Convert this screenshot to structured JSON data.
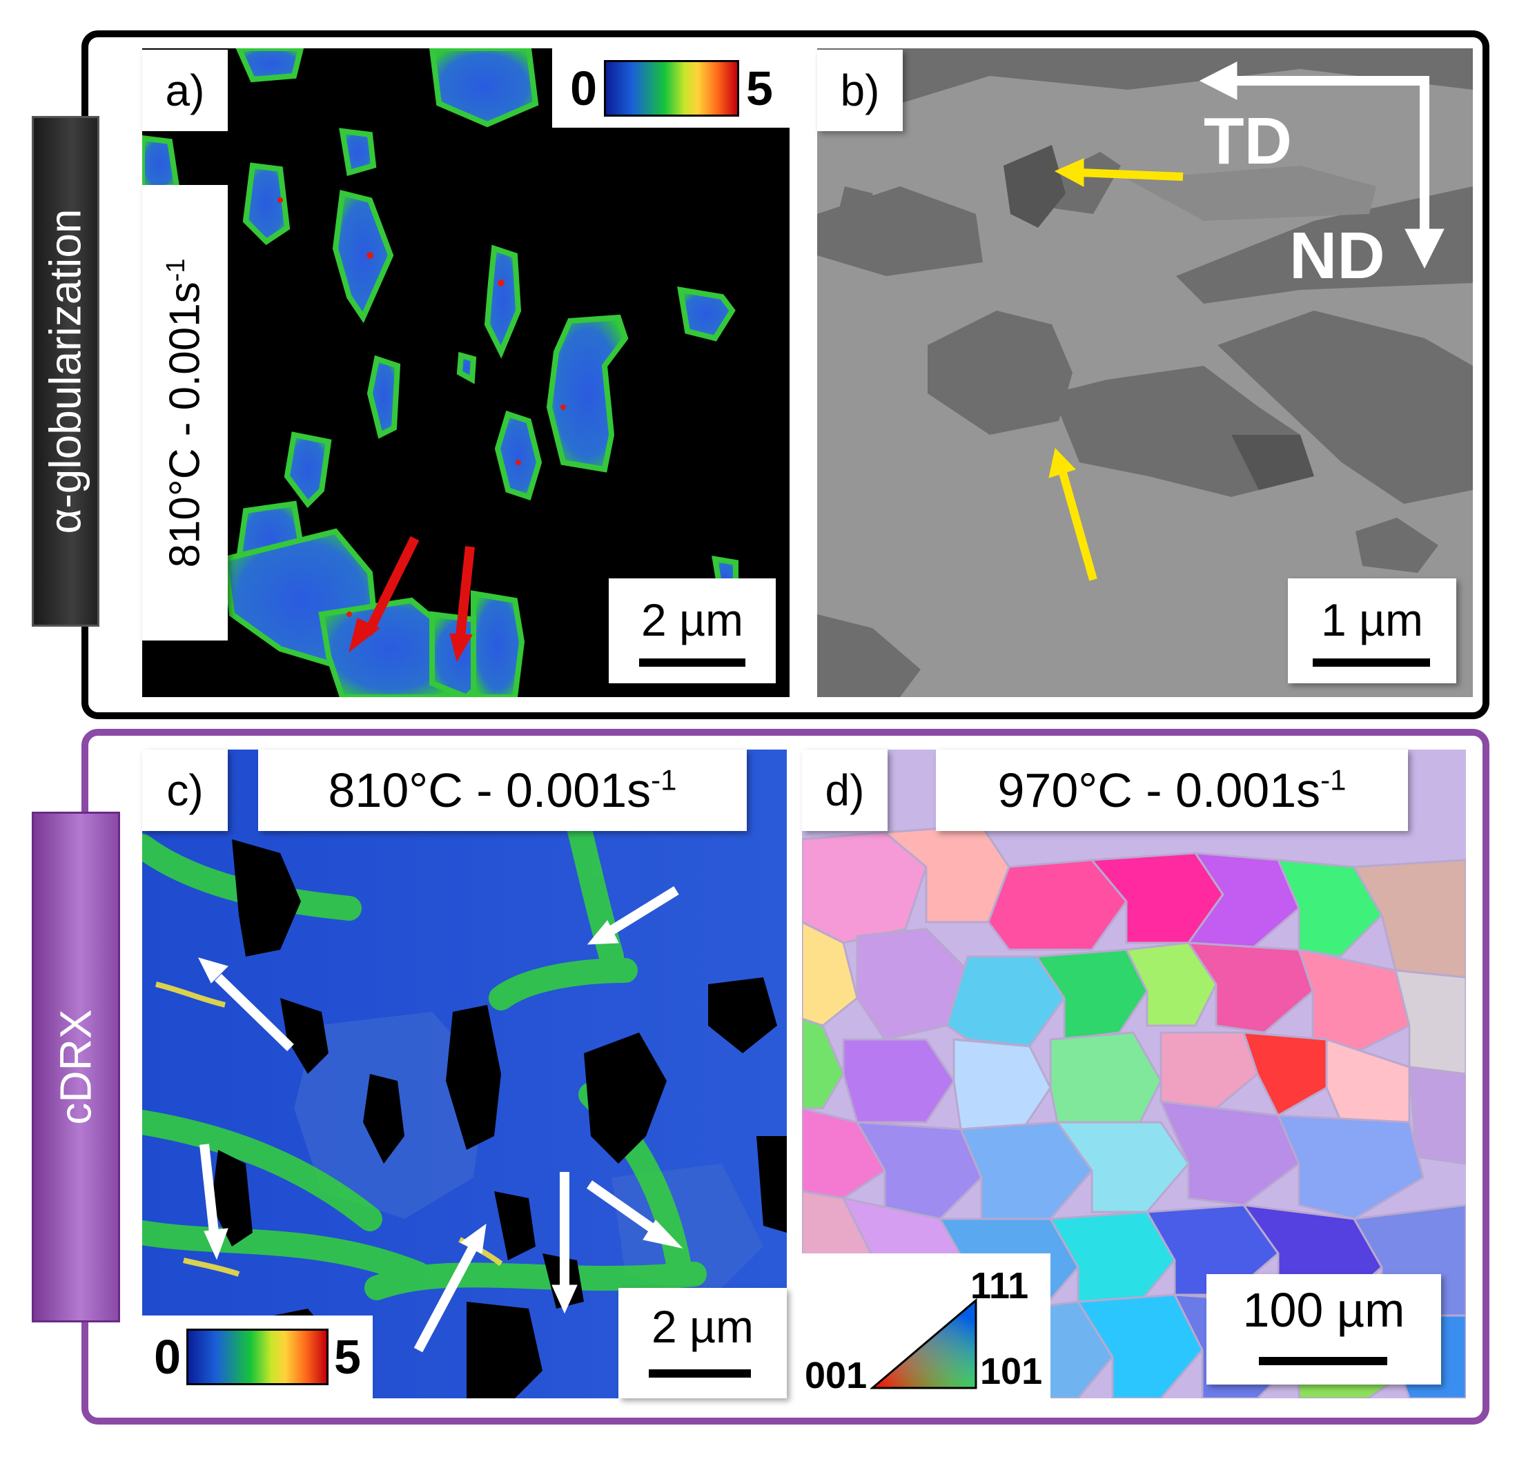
{
  "side_labels": {
    "top": "α-globularization",
    "bottom": "cDRX"
  },
  "panels": {
    "a": {
      "label": "a)",
      "condition": "810°C - 0.001s",
      "condition_sup": "-1",
      "scale": "2 µm",
      "colorbar_min": "0",
      "colorbar_max": "5"
    },
    "b": {
      "label": "b)",
      "scale": "1 µm",
      "axis_td": "TD",
      "axis_nd": "ND"
    },
    "c": {
      "label": "c)",
      "condition": "810°C - 0.001s",
      "condition_sup": "-1",
      "scale": "2 µm",
      "colorbar_min": "0",
      "colorbar_max": "5"
    },
    "d": {
      "label": "d)",
      "condition": "970°C - 0.001s",
      "condition_sup": "-1",
      "scale": "100 µm",
      "ipf_001": "001",
      "ipf_101": "101",
      "ipf_111": "111"
    }
  },
  "colors": {
    "frame_top": "#000000",
    "frame_bottom": "#8a4aa6",
    "arrow_red": "#e01010",
    "arrow_yellow": "#ffe600",
    "arrow_white": "#ffffff"
  }
}
